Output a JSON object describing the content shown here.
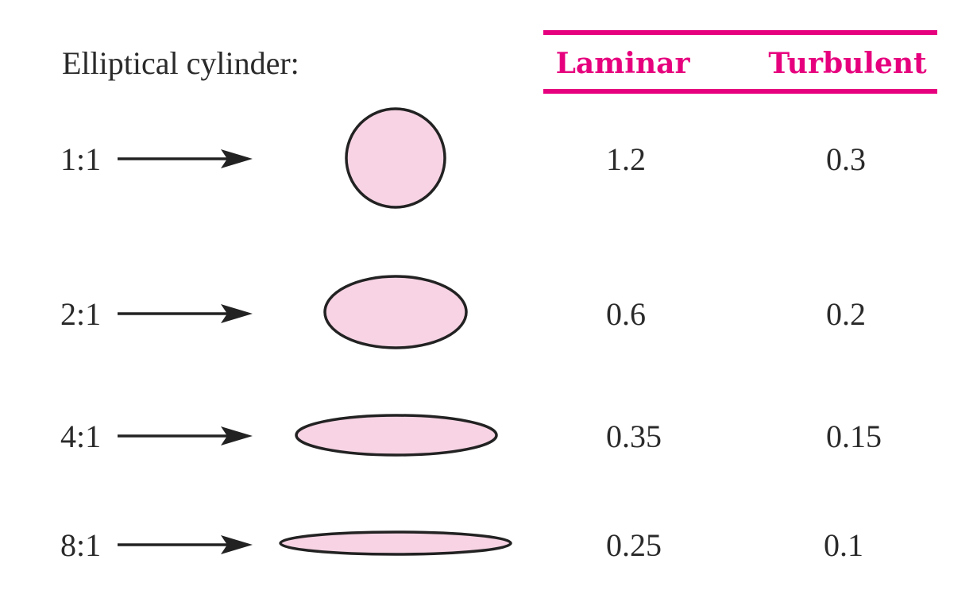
{
  "title": "Elliptical cylinder:",
  "columns": {
    "laminar": "Laminar",
    "turbulent": "Turbulent"
  },
  "rows": [
    {
      "ratio": "1:1",
      "laminar": "1.2",
      "turbulent": "0.3"
    },
    {
      "ratio": "2:1",
      "laminar": "0.6",
      "turbulent": "0.2"
    },
    {
      "ratio": "4:1",
      "laminar": "0.35",
      "turbulent": "0.15"
    },
    {
      "ratio": "8:1",
      "laminar": "0.25",
      "turbulent": "0.1"
    }
  ],
  "colors": {
    "accent": "#e6007e",
    "shape_fill": "#f7d3e3",
    "outline": "#222222"
  }
}
